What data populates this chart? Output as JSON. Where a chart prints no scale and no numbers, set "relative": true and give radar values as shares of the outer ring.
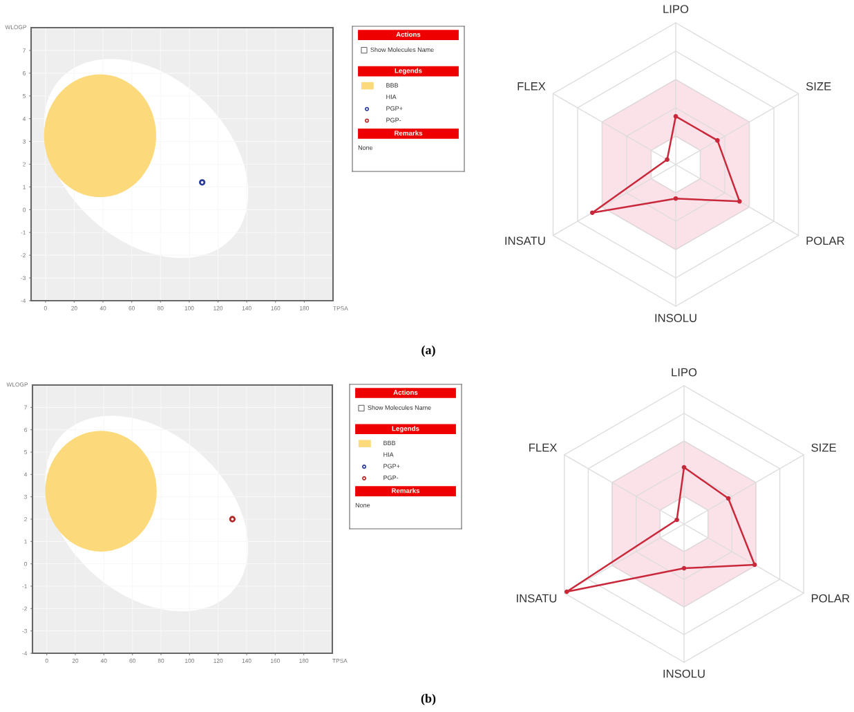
{
  "chart_data": [
    {
      "type": "scatter",
      "xlabel": "TPSA",
      "ylabel": "WLOGP",
      "xlim": [
        -10,
        200
      ],
      "ylim": [
        -4,
        8
      ],
      "xticks": [
        0,
        20,
        40,
        60,
        80,
        100,
        120,
        140,
        160,
        180
      ],
      "yticks": [
        -4,
        -3,
        -2,
        -1,
        0,
        1,
        2,
        3,
        4,
        5,
        6,
        7
      ],
      "grid": true,
      "marker": "circle",
      "series": [
        {
          "color": "#2b3a9a",
          "x": [
            109
          ],
          "values": [
            1.2
          ]
        }
      ],
      "annotations": [
        "Actions",
        "Show Molecules Name",
        "Legends",
        "BBB",
        "HIA",
        "PGP+",
        "PGP-",
        "Remarks",
        "None",
        "(a)"
      ]
    },
    {
      "type": "radar",
      "relative": true,
      "categories": [
        "LIPO",
        "SIZE",
        "POLAR",
        "INSOLU",
        "INSATU",
        "FLEX"
      ],
      "grid": true,
      "marker": "circle",
      "line_style": "solid",
      "series": [
        {
          "color": "#c8283a",
          "values": [
            0.34,
            0.34,
            0.52,
            0.24,
            0.68,
            0.07
          ]
        }
      ]
    },
    {
      "type": "scatter",
      "xlabel": "TPSA",
      "ylabel": "WLOGP",
      "xlim": [
        -10,
        200
      ],
      "ylim": [
        -4,
        8
      ],
      "xticks": [
        0,
        20,
        40,
        60,
        80,
        100,
        120,
        140,
        160,
        180
      ],
      "yticks": [
        -4,
        -3,
        -2,
        -1,
        0,
        1,
        2,
        3,
        4,
        5,
        6,
        7
      ],
      "grid": true,
      "marker": "circle",
      "series": [
        {
          "color": "#b22a2a",
          "x": [
            130
          ],
          "values": [
            2.0
          ]
        }
      ],
      "annotations": [
        "Actions",
        "Show Molecules Name",
        "Legends",
        "BBB",
        "HIA",
        "PGP+",
        "PGP-",
        "Remarks",
        "None",
        "(b)"
      ]
    },
    {
      "type": "radar",
      "relative": true,
      "categories": [
        "LIPO",
        "SIZE",
        "POLAR",
        "INSOLU",
        "INSATU",
        "FLEX"
      ],
      "grid": true,
      "marker": "circle",
      "line_style": "solid",
      "series": [
        {
          "color": "#c8283a",
          "values": [
            0.41,
            0.37,
            0.59,
            0.32,
            0.98,
            0.06
          ]
        }
      ]
    }
  ]
}
